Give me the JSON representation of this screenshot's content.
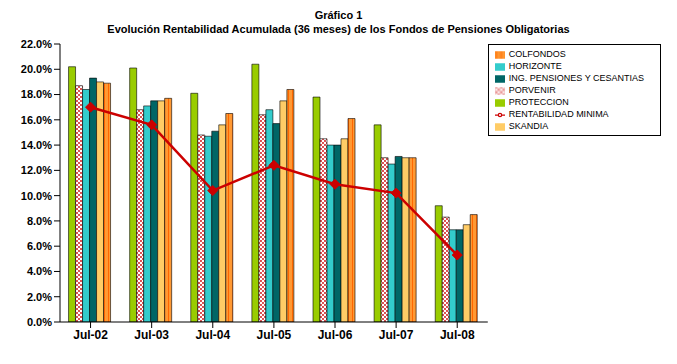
{
  "chart_data": {
    "type": "bar",
    "title": "Gráfico 1",
    "subtitle": "Evolución Rentabilidad Acumulada (36 meses) de los Fondos de Pensiones Obligatorias",
    "categories": [
      "Jul-02",
      "Jul-03",
      "Jul-04",
      "Jul-05",
      "Jul-06",
      "Jul-07",
      "Jul-08"
    ],
    "series": [
      {
        "name": "PROTECCION",
        "color": "#99CC00",
        "values": [
          20.2,
          20.1,
          18.1,
          20.4,
          17.8,
          15.6,
          9.2
        ]
      },
      {
        "name": "PORVENIR",
        "color": "#CC0000",
        "values": [
          18.7,
          16.8,
          14.8,
          16.4,
          14.5,
          13.0,
          8.3
        ]
      },
      {
        "name": "HORIZONTE",
        "color": "#33CCCC",
        "values": [
          18.4,
          17.1,
          14.7,
          16.8,
          14.0,
          12.5,
          7.3
        ]
      },
      {
        "name": "ING. PENSIONES Y CESANTIAS",
        "color": "#006666",
        "values": [
          19.3,
          17.5,
          15.1,
          15.7,
          14.0,
          13.1,
          7.3
        ]
      },
      {
        "name": "SKANDIA",
        "color": "#FFCC66",
        "values": [
          19.0,
          17.5,
          15.6,
          17.5,
          14.5,
          13.0,
          7.7
        ]
      },
      {
        "name": "COLFONDOS",
        "color": "#FF9933",
        "values": [
          18.9,
          17.7,
          16.5,
          18.4,
          16.1,
          13.0,
          8.5
        ]
      },
      {
        "name": "RENTABILIDAD MINIMA",
        "type": "line",
        "color": "#CC0000",
        "marker": "diamond",
        "values": [
          17.0,
          15.6,
          10.4,
          12.4,
          10.9,
          10.2,
          5.3
        ]
      }
    ],
    "ylim": [
      0,
      22
    ],
    "yticks": [
      {
        "value": 0,
        "label": "0.0%"
      },
      {
        "value": 2,
        "label": "2.0%"
      },
      {
        "value": 4,
        "label": "4.0%"
      },
      {
        "value": 6,
        "label": "6.0%"
      },
      {
        "value": 8,
        "label": "8.0%"
      },
      {
        "value": 10,
        "label": "10.0%"
      },
      {
        "value": 12,
        "label": "12.0%"
      },
      {
        "value": 14,
        "label": "14.0%"
      },
      {
        "value": 16,
        "label": "16.0%"
      },
      {
        "value": 18,
        "label": "18.0%"
      },
      {
        "value": 20,
        "label": "20.0%"
      },
      {
        "value": 22,
        "label": "22.0%"
      }
    ],
    "grid": false,
    "legend": "right"
  }
}
